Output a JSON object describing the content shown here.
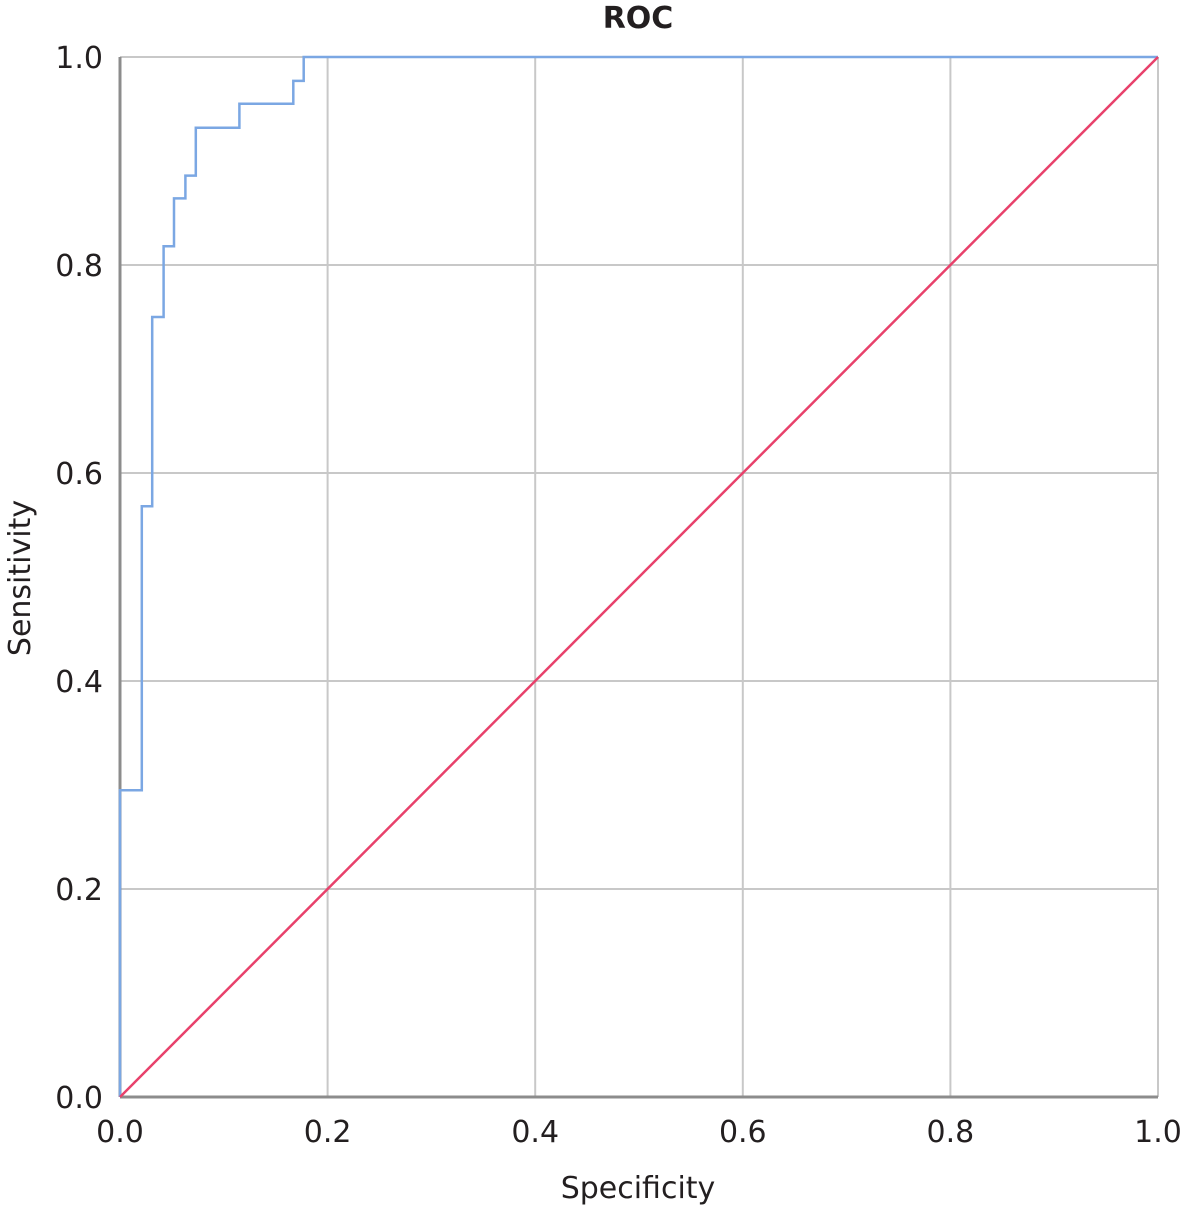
{
  "chart_data": {
    "type": "line",
    "title": "ROC",
    "xlabel": "Specificity",
    "ylabel": "Sensitivity",
    "xlim": [
      0.0,
      1.0
    ],
    "ylim": [
      0.0,
      1.0
    ],
    "x_ticks": [
      "0.0",
      "0.2",
      "0.4",
      "0.6",
      "0.8",
      "1.0"
    ],
    "y_ticks": [
      "0.0",
      "0.2",
      "0.4",
      "0.6",
      "0.8",
      "1.0"
    ],
    "grid": true,
    "series": [
      {
        "color": "#7ba7e3",
        "style": "step",
        "points": [
          [
            0.0,
            0.0
          ],
          [
            0.0,
            0.295
          ],
          [
            0.021,
            0.295
          ],
          [
            0.021,
            0.568
          ],
          [
            0.031,
            0.568
          ],
          [
            0.031,
            0.75
          ],
          [
            0.042,
            0.75
          ],
          [
            0.042,
            0.818
          ],
          [
            0.052,
            0.818
          ],
          [
            0.052,
            0.864
          ],
          [
            0.063,
            0.864
          ],
          [
            0.063,
            0.886
          ],
          [
            0.073,
            0.886
          ],
          [
            0.073,
            0.932
          ],
          [
            0.115,
            0.932
          ],
          [
            0.115,
            0.955
          ],
          [
            0.167,
            0.955
          ],
          [
            0.167,
            0.977
          ],
          [
            0.177,
            0.977
          ],
          [
            0.177,
            1.0
          ],
          [
            1.0,
            1.0
          ]
        ]
      },
      {
        "color": "#e8416b",
        "style": "line",
        "points": [
          [
            0.0,
            0.0
          ],
          [
            1.0,
            1.0
          ]
        ]
      }
    ]
  }
}
